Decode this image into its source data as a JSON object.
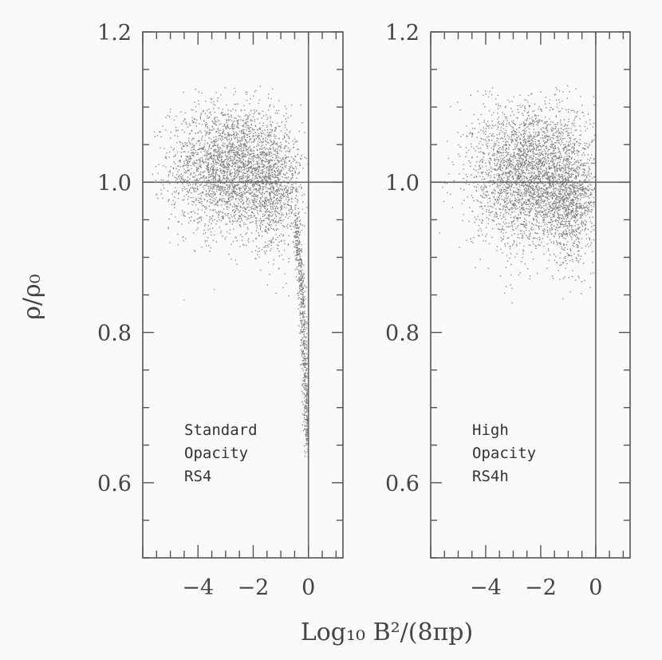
{
  "chart_data": {
    "type": "scatter",
    "shared_ylabel": "ρ/ρ₀",
    "shared_xlabel": "Log₁₀ B²/(8πp)",
    "xlim": [
      -6.0,
      1.25
    ],
    "ylim": [
      0.5,
      1.2
    ],
    "x_ticks": [
      "−4",
      "−2",
      "0"
    ],
    "y_ticks": [
      "0.6",
      "0.8",
      "1.0",
      "1.2"
    ],
    "reference_lines": {
      "x": 0,
      "y": 1.0
    },
    "point_color": "#7d7d7d",
    "panels": [
      {
        "name": "standard",
        "annotation": [
          "Standard",
          "Opacity",
          "RS4"
        ],
        "clusters": [
          {
            "cx": -2.9,
            "cy": 1.02,
            "sx": 1.05,
            "sy": 0.042,
            "n": 2600
          },
          {
            "cx": -1.3,
            "cy": 0.99,
            "sx": 0.55,
            "sy": 0.04,
            "n": 900
          }
        ],
        "tail": [
          {
            "x": -0.5,
            "y": 0.95
          },
          {
            "x": -0.3,
            "y": 0.88
          },
          {
            "x": -0.2,
            "y": 0.8
          },
          {
            "x": -0.1,
            "y": 0.72
          },
          {
            "x": -0.03,
            "y": 0.65
          }
        ]
      },
      {
        "name": "high",
        "annotation": [
          "High",
          "Opacity",
          "RS4h"
        ],
        "clusters": [
          {
            "cx": -2.3,
            "cy": 1.01,
            "sx": 1.1,
            "sy": 0.048,
            "n": 3200
          },
          {
            "cx": -0.9,
            "cy": 0.97,
            "sx": 0.45,
            "sy": 0.04,
            "n": 700
          }
        ],
        "tail": []
      }
    ]
  }
}
